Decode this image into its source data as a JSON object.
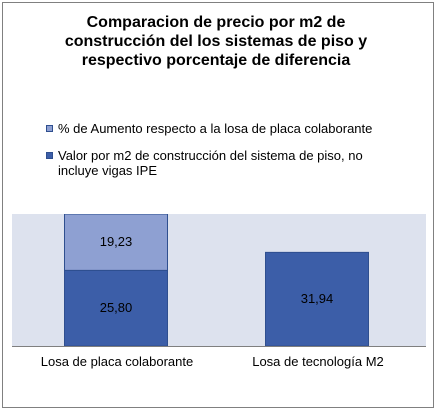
{
  "chart_data": {
    "type": "bar",
    "stacked": true,
    "title": [
      "Comparacion de precio por m2 de",
      "construcción del los sistemas de piso y",
      "respectivo porcentaje de diferencia"
    ],
    "categories": [
      "Losa de placa colaborante",
      "Losa de tecnología M2"
    ],
    "series": [
      {
        "name": "Valor por m2 de construcción del  sistema de piso, no incluye vigas IPE",
        "values": [
          25.8,
          31.94
        ],
        "labels": [
          "25,80",
          "31,94"
        ],
        "color": "#3c5ea8"
      },
      {
        "name": "% de Aumento respecto a la losa de placa colaborante",
        "values": [
          19.23,
          null
        ],
        "labels": [
          "19,23",
          ""
        ],
        "color": "#8ea0d2"
      }
    ],
    "ylim": [
      0,
      45.03
    ],
    "legend_position": "top",
    "grid": false
  }
}
